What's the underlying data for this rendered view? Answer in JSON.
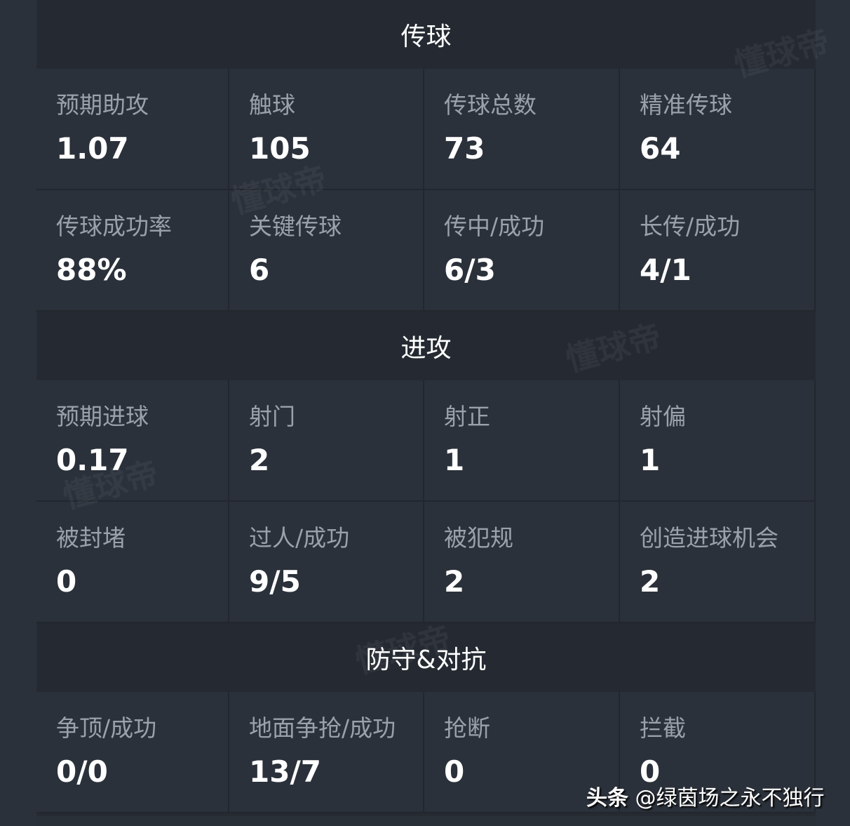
{
  "sections": [
    {
      "title": "传球",
      "stats": [
        {
          "label": "预期助攻",
          "value": "1.07"
        },
        {
          "label": "触球",
          "value": "105"
        },
        {
          "label": "传球总数",
          "value": "73"
        },
        {
          "label": "精准传球",
          "value": "64"
        },
        {
          "label": "传球成功率",
          "value": "88%"
        },
        {
          "label": "关键传球",
          "value": "6"
        },
        {
          "label": "传中/成功",
          "value": "6/3"
        },
        {
          "label": "长传/成功",
          "value": "4/1"
        }
      ]
    },
    {
      "title": "进攻",
      "stats": [
        {
          "label": "预期进球",
          "value": "0.17"
        },
        {
          "label": "射门",
          "value": "2"
        },
        {
          "label": "射正",
          "value": "1"
        },
        {
          "label": "射偏",
          "value": "1"
        },
        {
          "label": "被封堵",
          "value": "0"
        },
        {
          "label": "过人/成功",
          "value": "9/5"
        },
        {
          "label": "被犯规",
          "value": "2"
        },
        {
          "label": "创造进球机会",
          "value": "2"
        }
      ]
    },
    {
      "title": "防守&对抗",
      "stats": [
        {
          "label": "争顶/成功",
          "value": "0/0"
        },
        {
          "label": "地面争抢/成功",
          "value": "13/7"
        },
        {
          "label": "抢断",
          "value": "0"
        },
        {
          "label": "拦截",
          "value": "0"
        }
      ]
    }
  ],
  "watermark": "懂球帝",
  "credit": {
    "platform": "头条",
    "handle": "@绿茵场之永不独行"
  }
}
